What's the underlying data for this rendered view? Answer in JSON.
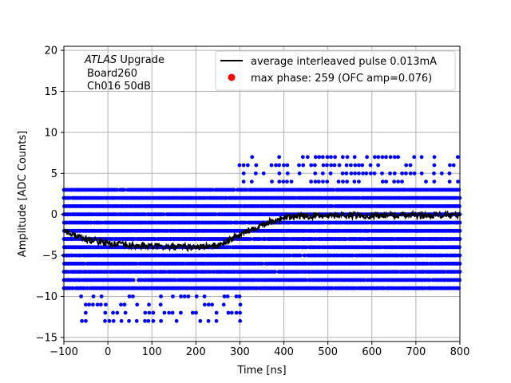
{
  "chart_data": {
    "type": "scatter",
    "xlabel": "Time [ns]",
    "ylabel": "Amplitude [ADC Counts]",
    "xlim": [
      -100,
      800
    ],
    "ylim": [
      -15.5,
      20.5
    ],
    "xticks": [
      -100,
      0,
      100,
      200,
      300,
      400,
      500,
      600,
      700,
      800
    ],
    "yticks": [
      -15,
      -10,
      -5,
      0,
      5,
      10,
      15,
      20
    ],
    "grid": true,
    "annotation": {
      "brand": "ATLAS",
      "brand_suffix": " Upgrade",
      "line2": "Board260",
      "line3": "Ch016 50dB"
    },
    "legend": {
      "position": "top-right",
      "entries": [
        {
          "label": "average interleaved pulse 0.013mA",
          "kind": "line",
          "color": "#000000"
        },
        {
          "label": "max phase: 259 (OFC amp=0.076)",
          "kind": "marker",
          "color": "#ff0000"
        }
      ]
    },
    "series": [
      {
        "kind": "scatter",
        "color": "#0000ff",
        "samples": [
          {
            "x_range": [
              -100,
              800
            ],
            "y_levels": [
              -9,
              -8,
              -7,
              -6,
              -5,
              -4,
              -3,
              -2,
              -1,
              0,
              1,
              2,
              3
            ],
            "description_density": "dense"
          },
          {
            "x_range": [
              -60,
              300
            ],
            "y_levels": [
              -10,
              -11,
              -12,
              -13
            ],
            "description_density": "sparse"
          },
          {
            "x_range": [
              300,
              800
            ],
            "y_levels": [
              4,
              5,
              6,
              7
            ],
            "description_density": "sparse"
          }
        ]
      },
      {
        "kind": "line",
        "color": "#000000",
        "x": [
          -100,
          -50,
          0,
          50,
          100,
          150,
          200,
          250,
          300,
          350,
          400,
          450,
          500,
          600,
          700,
          800
        ],
        "y": [
          -2,
          -3,
          -3.5,
          -3.8,
          -3.9,
          -4,
          -4,
          -3.8,
          -2.5,
          -1.2,
          -0.4,
          -0.2,
          -0.1,
          -0.1,
          -0.1,
          -0.1
        ]
      }
    ],
    "max_phase_point": {
      "x": 259,
      "y": 0.076
    }
  },
  "colors": {
    "scatter": "#0000ff",
    "line": "#000000",
    "marker": "#ff0000",
    "grid": "#b0b0b0"
  }
}
